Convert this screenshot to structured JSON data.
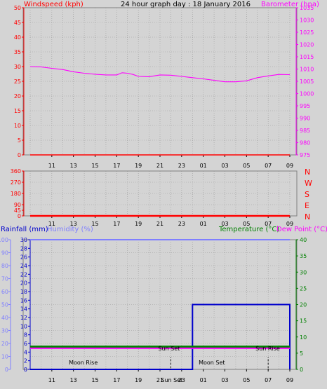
{
  "header": {
    "left_label": "Windspeed (kph)",
    "title": "24 hour graph day : 18 January 2016",
    "right_label": "Barometer (hpa)"
  },
  "labels": {
    "rainfall": "Rainfall (mm)",
    "humidity": "Humidity (%)",
    "temperature": "Temperature (°C)",
    "dewpoint": "Dew Point (°C)",
    "moon_rise": "Moon Rise",
    "moon_set": "Moon Set",
    "sun_set": "Sun Set",
    "sun_rise": "Sun Rise"
  },
  "x_ticks": [
    "11",
    "13",
    "15",
    "17",
    "19",
    "21",
    "23",
    "01",
    "03",
    "05",
    "07",
    "09"
  ],
  "colors": {
    "windspeed": "#ff0000",
    "barometer": "#ff00ff",
    "rainfall": "#0000cc",
    "humidity": "#7f7fff",
    "temperature": "#008000",
    "dewpoint": "#ff00ff",
    "axis_time": "#000000",
    "background": "#d4d4d4"
  },
  "chart_data": [
    {
      "type": "line",
      "title": "24 hour graph day : 18 January 2016",
      "x_ticks": [
        "11",
        "13",
        "15",
        "17",
        "19",
        "21",
        "23",
        "01",
        "03",
        "05",
        "07",
        "09"
      ],
      "y_left": {
        "label": "Windspeed (kph)",
        "range": [
          0,
          50
        ],
        "ticks": [
          0,
          5,
          10,
          15,
          20,
          25,
          30,
          35,
          40,
          45,
          50
        ]
      },
      "y_right": {
        "label": "Barometer (hpa)",
        "range": [
          975,
          1035
        ],
        "ticks": [
          975,
          980,
          985,
          990,
          995,
          1000,
          1005,
          1010,
          1015,
          1020,
          1025,
          1030,
          1035
        ]
      },
      "series": [
        {
          "name": "Windspeed (kph)",
          "axis": "left",
          "x": [
            "09:00",
            "11:00",
            "13:00",
            "15:00",
            "17:00",
            "19:00",
            "21:00",
            "23:00",
            "01:00",
            "03:00",
            "05:00",
            "07:00",
            "09:00"
          ],
          "values": [
            0,
            0,
            0,
            0,
            0,
            0,
            0,
            0,
            0,
            0,
            0,
            0,
            0
          ]
        },
        {
          "name": "Barometer (hpa)",
          "axis": "right",
          "x": [
            "09:00",
            "10:00",
            "11:00",
            "12:00",
            "13:00",
            "14:00",
            "15:00",
            "16:00",
            "17:00",
            "17:30",
            "18:00",
            "18:30",
            "19:00",
            "20:00",
            "21:00",
            "22:00",
            "23:00",
            "00:00",
            "01:00",
            "02:00",
            "03:00",
            "04:00",
            "05:00",
            "06:00",
            "07:00",
            "08:00",
            "09:00"
          ],
          "values": [
            1011,
            1010.9,
            1010.3,
            1009.8,
            1008.9,
            1008.3,
            1007.9,
            1007.6,
            1007.6,
            1008.5,
            1008.3,
            1007.8,
            1007,
            1006.9,
            1007.6,
            1007.5,
            1007,
            1006.5,
            1006,
            1005.4,
            1004.8,
            1004.8,
            1005.2,
            1006.5,
            1007.2,
            1007.8,
            1007.7
          ]
        }
      ]
    },
    {
      "type": "line",
      "y_left": {
        "label": "",
        "range": [
          0,
          360
        ],
        "ticks": [
          0,
          45,
          90,
          180,
          270,
          360
        ]
      },
      "y_right_labels": [
        "N",
        "W",
        "S",
        "E",
        "N"
      ],
      "x_ticks": [
        "11",
        "13",
        "15",
        "17",
        "19",
        "21",
        "23",
        "01",
        "03",
        "05",
        "07",
        "09"
      ],
      "series": [
        {
          "name": "Wind direction",
          "axis": "left",
          "x": [
            "09:00",
            "09:00"
          ],
          "values": [
            0,
            0
          ]
        }
      ]
    },
    {
      "type": "line",
      "x_ticks": [
        "11",
        "13",
        "15",
        "17",
        "19",
        "21",
        "23",
        "01",
        "03",
        "05",
        "07",
        "09"
      ],
      "y_left_outer": {
        "label": "Humidity (%)",
        "range": [
          0,
          100
        ],
        "ticks": [
          0,
          10,
          20,
          30,
          40,
          50,
          60,
          70,
          80,
          90,
          100
        ]
      },
      "y_left_inner": {
        "label": "Rainfall (mm)",
        "range": [
          0,
          30
        ],
        "ticks": [
          0,
          2,
          4,
          6,
          8,
          10,
          12,
          14,
          16,
          18,
          20,
          22,
          24,
          26,
          28,
          30
        ]
      },
      "y_right": {
        "label": "Temperature (°C)",
        "range": [
          0,
          40
        ],
        "ticks": [
          0,
          5,
          10,
          15,
          20,
          25,
          30,
          35,
          40
        ]
      },
      "series": [
        {
          "name": "Humidity (%)",
          "axis": "left_outer",
          "x": [
            "09:00",
            "09:00"
          ],
          "values": [
            100,
            100
          ]
        },
        {
          "name": "Rainfall (mm)",
          "axis": "left_inner",
          "x": [
            "09:00",
            "00:00",
            "00:00",
            "09:00",
            "09:00"
          ],
          "values": [
            0,
            0,
            15,
            15,
            0
          ]
        },
        {
          "name": "Temperature (°C)",
          "axis": "right",
          "x": [
            "09:00",
            "09:00"
          ],
          "values": [
            7,
            7
          ]
        },
        {
          "name": "Dew Point (°C)",
          "axis": "right",
          "x": [
            "09:00",
            "09:00"
          ],
          "values": [
            6.5,
            6.5
          ]
        }
      ],
      "annotations": [
        {
          "label": "Moon Rise",
          "x": "14:00"
        },
        {
          "label": "Sun Set",
          "x": "22:00",
          "marker": true
        },
        {
          "label": "Moon Set",
          "x": "02:00"
        },
        {
          "label": "Sun Rise",
          "x": "07:00",
          "marker": true
        }
      ],
      "bottom_label": {
        "label": "Sun Set",
        "x": "22:00"
      }
    }
  ]
}
